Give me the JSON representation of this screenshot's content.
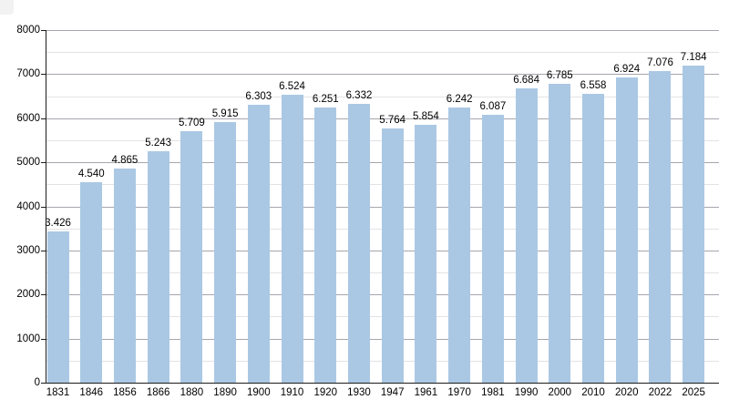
{
  "chart_data": {
    "type": "bar",
    "title": "",
    "xlabel": "",
    "ylabel": "",
    "categories": [
      "1831",
      "1846",
      "1856",
      "1866",
      "1880",
      "1890",
      "1900",
      "1910",
      "1920",
      "1930",
      "1947",
      "1961",
      "1970",
      "1981",
      "1990",
      "2000",
      "2010",
      "2020",
      "2022",
      "2025"
    ],
    "values": [
      3426,
      4540,
      4865,
      5243,
      5709,
      5915,
      6303,
      6524,
      6251,
      6332,
      5764,
      5854,
      6242,
      6087,
      6684,
      6785,
      6558,
      6924,
      7076,
      7184
    ],
    "value_labels": [
      "3.426",
      "4.540",
      "4.865",
      "5.243",
      "5.709",
      "5.915",
      "6.303",
      "6.524",
      "6.251",
      "6.332",
      "5.764",
      "5.854",
      "6.242",
      "6.087",
      "6.684",
      "6.785",
      "6.558",
      "6.924",
      "7.076",
      "7.184"
    ],
    "ylim": [
      0,
      8000
    ],
    "y_major_step": 1000,
    "y_minor_step": 500,
    "y_tick_labels": [
      "0",
      "1000",
      "2000",
      "3000",
      "4000",
      "5000",
      "6000",
      "7000",
      "8000"
    ],
    "grid": "horizontal major+minor",
    "legend": "none",
    "colors": {
      "bar_fill": "#aac8e4",
      "major_grid": "#a6a6ad",
      "minor_grid": "#e3e3e6",
      "axis": "#1c1c1c",
      "text": "#000000",
      "background": "#ffffff",
      "corner_artifact": "#f2f2f2"
    }
  }
}
